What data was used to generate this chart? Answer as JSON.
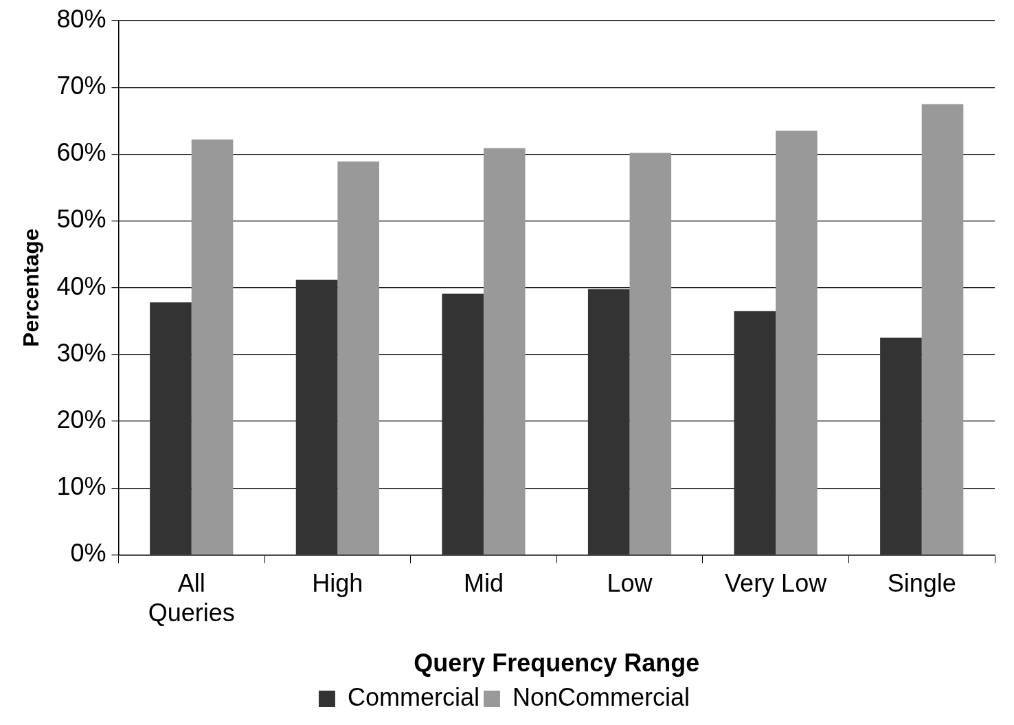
{
  "chart_data": {
    "type": "bar",
    "xlabel": "Query Frequency Range",
    "ylabel": "Percentage",
    "categories": [
      "All\nQueries",
      "High",
      "Mid",
      "Low",
      "Very Low",
      "Single"
    ],
    "series": [
      {
        "name": "Commercial",
        "color": "#333333",
        "values": [
          37.8,
          41.2,
          39.1,
          39.8,
          36.5,
          32.5
        ]
      },
      {
        "name": "NonCommercial",
        "color": "#999999",
        "values": [
          62.2,
          58.9,
          60.9,
          60.2,
          63.5,
          67.5
        ]
      }
    ],
    "ylim": [
      0,
      80
    ],
    "yticks": [
      {
        "value": 0,
        "label": "0%"
      },
      {
        "value": 10,
        "label": "10%"
      },
      {
        "value": 20,
        "label": "20%"
      },
      {
        "value": 30,
        "label": "30%"
      },
      {
        "value": 40,
        "label": "40%"
      },
      {
        "value": 50,
        "label": "50%"
      },
      {
        "value": 60,
        "label": "60%"
      },
      {
        "value": 70,
        "label": "70%"
      },
      {
        "value": 80,
        "label": "80%"
      }
    ],
    "grid": "y",
    "legend": "bottom"
  }
}
